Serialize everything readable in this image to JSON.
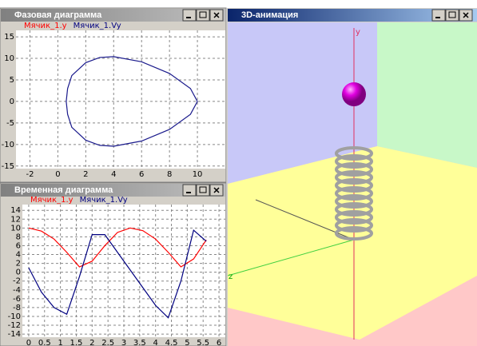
{
  "windows": [
    {
      "title": "Фазовая диаграмма",
      "chart": {
        "type": "line",
        "legend": [
          {
            "name": "Мячик_1.y",
            "color": "#ff0000"
          },
          {
            "name": "Мячик_1.Vy",
            "color": "#000080"
          }
        ],
        "curve": {
          "color": "#1a1a8c",
          "x": [
            10,
            9.5,
            8,
            6,
            4,
            3,
            2,
            1,
            0.7,
            0.6,
            0.7,
            1,
            2,
            3,
            4,
            6,
            8,
            9.5,
            10
          ],
          "y": [
            0,
            3,
            6.5,
            9.2,
            10.4,
            10.2,
            9,
            6,
            3,
            0,
            -3,
            -6,
            -9,
            -10.2,
            -10.4,
            -9.2,
            -6.5,
            -3,
            0
          ]
        },
        "xlim": [
          -3,
          12
        ],
        "xticks": [
          -2,
          0,
          2,
          4,
          6,
          8,
          10
        ],
        "ylim": [
          -15.6,
          16.5
        ],
        "yticks": [
          15,
          10,
          5,
          0,
          -5,
          -10,
          -15
        ],
        "grid": true
      }
    },
    {
      "title": "Временная диаграмма",
      "chart": {
        "type": "line",
        "x": [
          0,
          0.4,
          0.8,
          1.2,
          1.6,
          2.0,
          2.4,
          2.8,
          3.2,
          3.6,
          4.0,
          4.4,
          4.8,
          5.2,
          5.6
        ],
        "series": [
          {
            "name": "Мячик_1.y",
            "color": "#ff0000",
            "values": [
              10,
              9.3,
              7.5,
              4.5,
              1.2,
              2.5,
              6,
              9,
              10,
              9.4,
              7.5,
              4.5,
              1.2,
              3,
              7.3
            ]
          },
          {
            "name": "Мячик_1.Vy",
            "color": "#000080",
            "values": [
              1,
              -4.5,
              -8,
              -9.5,
              -1,
              8.5,
              8.5,
              4.5,
              0.5,
              -3.5,
              -7.5,
              -10.3,
              -2,
              9.5,
              7
            ]
          }
        ],
        "xlim": [
          -0.2,
          6.2
        ],
        "xticks": [
          0,
          0.5,
          1,
          1.5,
          2,
          2.5,
          3,
          3.5,
          4,
          4.5,
          5,
          5.5,
          6
        ],
        "ylim": [
          -14.7,
          15.3
        ],
        "yticks": [
          14,
          12,
          10,
          8,
          6,
          4,
          2,
          0,
          -2,
          -4,
          -6,
          -8,
          -10,
          -12,
          -14
        ],
        "grid": true
      }
    },
    {
      "title": "3D-анимация",
      "axis_labels": [
        "y",
        "z"
      ]
    }
  ]
}
